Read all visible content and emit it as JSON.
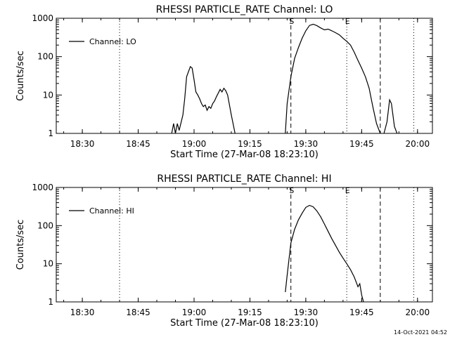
{
  "footer_timestamp": "14-Oct-2021 04:52",
  "chart_data": [
    {
      "type": "line",
      "title": "RHESSI PARTICLE_RATE Channel: LO",
      "xlabel": "Start Time (27-Mar-08 18:23:10)",
      "ylabel": "Counts/sec",
      "yscale": "log",
      "ylim": [
        1,
        1000
      ],
      "xlim": [
        "18:23",
        "20:04"
      ],
      "x_ticks": [
        "18:30",
        "18:45",
        "19:00",
        "19:15",
        "19:30",
        "19:45",
        "20:00"
      ],
      "y_ticks": [
        "1",
        "10",
        "100",
        "1000"
      ],
      "legend": {
        "entries": [
          "Channel: LO"
        ],
        "placement": "top-left"
      },
      "grid": false,
      "markers": [
        {
          "time": "18:40",
          "style": "dotted",
          "label": ""
        },
        {
          "time": "19:26",
          "style": "dashed",
          "label": "S"
        },
        {
          "time": "19:41",
          "style": "dotted",
          "label": "E"
        },
        {
          "time": "19:50",
          "style": "dashed",
          "label": ""
        },
        {
          "time": "19:59",
          "style": "dotted",
          "label": ""
        }
      ],
      "series": [
        {
          "name": "Channel: LO",
          "segments": [
            [
              [
                "18:54",
                1
              ],
              [
                "18:54.5",
                1.8
              ],
              [
                "18:55",
                1
              ],
              [
                "18:55.5",
                1.8
              ],
              [
                "18:56",
                1.2
              ],
              [
                "18:57",
                3
              ],
              [
                "18:57.5",
                8
              ],
              [
                "18:58",
                30
              ],
              [
                "18:59",
                55
              ],
              [
                "18:59.5",
                50
              ],
              [
                "19:00",
                25
              ],
              [
                "19:00.5",
                12
              ],
              [
                "19:01",
                10
              ],
              [
                "19:01.5",
                8
              ],
              [
                "19:02",
                6
              ],
              [
                "19:02.5",
                5
              ],
              [
                "19:03",
                5.5
              ],
              [
                "19:03.5",
                4
              ],
              [
                "19:04",
                5
              ],
              [
                "19:04.5",
                4.5
              ],
              [
                "19:05",
                6
              ],
              [
                "19:05.5",
                7
              ],
              [
                "19:06",
                9
              ],
              [
                "19:07",
                14
              ],
              [
                "19:07.5",
                12
              ],
              [
                "19:08",
                15
              ],
              [
                "19:08.5",
                13
              ],
              [
                "19:09",
                10
              ],
              [
                "19:10",
                3
              ],
              [
                "19:11",
                1
              ]
            ],
            [
              [
                "19:24.5",
                1
              ],
              [
                "19:25",
                6
              ],
              [
                "19:26",
                30
              ],
              [
                "19:27",
                90
              ],
              [
                "19:28",
                170
              ],
              [
                "19:29",
                300
              ],
              [
                "19:30",
                470
              ],
              [
                "19:31",
                650
              ],
              [
                "19:32",
                700
              ],
              [
                "19:33",
                640
              ],
              [
                "19:34",
                560
              ],
              [
                "19:35",
                500
              ],
              [
                "19:36",
                520
              ],
              [
                "19:37",
                470
              ],
              [
                "19:38",
                420
              ],
              [
                "19:39",
                370
              ],
              [
                "19:40",
                300
              ],
              [
                "19:41",
                250
              ],
              [
                "19:42",
                200
              ],
              [
                "19:43",
                130
              ],
              [
                "19:44",
                80
              ],
              [
                "19:45",
                50
              ],
              [
                "19:46",
                30
              ],
              [
                "19:47",
                15
              ],
              [
                "19:48",
                5
              ],
              [
                "19:49",
                1.8
              ],
              [
                "19:50",
                1
              ]
            ],
            [
              [
                "19:51",
                1
              ],
              [
                "19:51.8",
                2
              ],
              [
                "19:52.5",
                7.5
              ],
              [
                "19:53",
                6
              ],
              [
                "19:53.8",
                1.5
              ],
              [
                "19:54.5",
                1
              ]
            ]
          ]
        }
      ]
    },
    {
      "type": "line",
      "title": "RHESSI PARTICLE_RATE Channel: HI",
      "xlabel": "Start Time (27-Mar-08 18:23:10)",
      "ylabel": "Counts/sec",
      "yscale": "log",
      "ylim": [
        1,
        1000
      ],
      "xlim": [
        "18:23",
        "20:04"
      ],
      "x_ticks": [
        "18:30",
        "18:45",
        "19:00",
        "19:15",
        "19:30",
        "19:45",
        "20:00"
      ],
      "y_ticks": [
        "1",
        "10",
        "100",
        "1000"
      ],
      "legend": {
        "entries": [
          "Channel: HI"
        ],
        "placement": "top-left"
      },
      "grid": false,
      "markers": [
        {
          "time": "18:40",
          "style": "dotted",
          "label": ""
        },
        {
          "time": "19:26",
          "style": "dashed",
          "label": "S"
        },
        {
          "time": "19:41",
          "style": "dotted",
          "label": "E"
        },
        {
          "time": "19:50",
          "style": "dashed",
          "label": ""
        },
        {
          "time": "19:59",
          "style": "dotted",
          "label": ""
        }
      ],
      "series": [
        {
          "name": "Channel: HI",
          "segments": [
            [
              [
                "19:24.5",
                1.8
              ],
              [
                "19:25",
                5
              ],
              [
                "19:26",
                35
              ],
              [
                "19:27",
                80
              ],
              [
                "19:28",
                140
              ],
              [
                "19:29",
                210
              ],
              [
                "19:30",
                300
              ],
              [
                "19:31",
                340
              ],
              [
                "19:32",
                310
              ],
              [
                "19:33",
                240
              ],
              [
                "19:34",
                170
              ],
              [
                "19:35",
                110
              ],
              [
                "19:36",
                70
              ],
              [
                "19:37",
                45
              ],
              [
                "19:38",
                30
              ],
              [
                "19:39",
                20
              ],
              [
                "19:40",
                14
              ],
              [
                "19:41",
                10
              ],
              [
                "19:42",
                7
              ],
              [
                "19:43",
                4.5
              ],
              [
                "19:44",
                2.5
              ],
              [
                "19:44.5",
                3
              ],
              [
                "19:45",
                1.5
              ],
              [
                "19:45.5",
                1
              ]
            ]
          ]
        }
      ]
    }
  ]
}
